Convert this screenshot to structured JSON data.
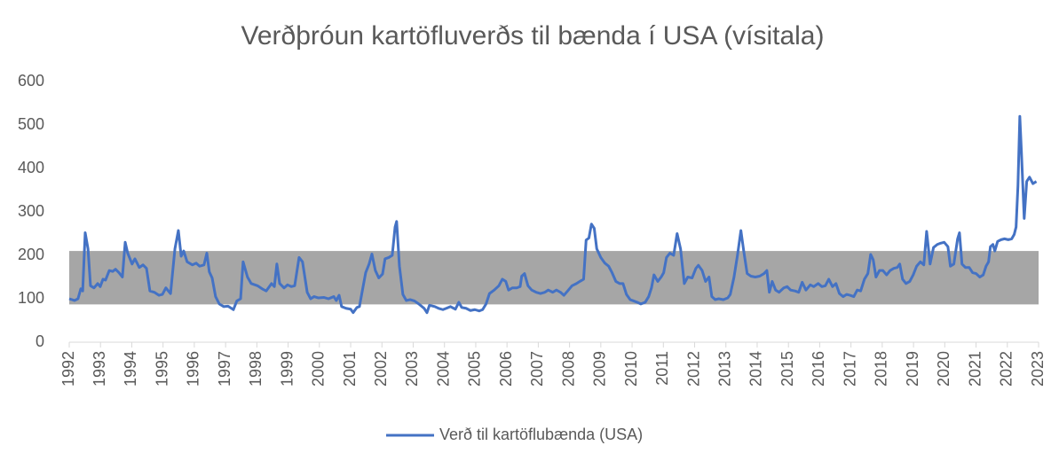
{
  "chart_data": {
    "type": "line",
    "title": "Verðþróun kartöfluverðs til bænda í USA (vísitala)",
    "x": [
      1992.0,
      1992.17,
      1992.28,
      1992.37,
      1992.43,
      1992.51,
      1992.6,
      1992.68,
      1992.79,
      1992.91,
      1992.99,
      1993.08,
      1993.16,
      1993.28,
      1993.39,
      1993.48,
      1993.59,
      1993.7,
      1993.79,
      1993.87,
      1994.01,
      1994.1,
      1994.24,
      1994.36,
      1994.47,
      1994.58,
      1994.72,
      1994.87,
      1994.98,
      1995.09,
      1995.24,
      1995.38,
      1995.49,
      1995.58,
      1995.66,
      1995.77,
      1995.94,
      1996.06,
      1996.17,
      1996.31,
      1996.4,
      1996.48,
      1996.57,
      1996.68,
      1996.8,
      1996.94,
      1997.08,
      1997.25,
      1997.36,
      1997.48,
      1997.56,
      1997.7,
      1997.82,
      1998.02,
      1998.19,
      1998.3,
      1998.47,
      1998.56,
      1998.64,
      1998.73,
      1998.87,
      1998.98,
      1999.1,
      1999.21,
      1999.35,
      1999.46,
      1999.61,
      1999.72,
      1999.83,
      1999.97,
      2000.15,
      2000.29,
      2000.46,
      2000.54,
      2000.63,
      2000.71,
      2000.85,
      2001.0,
      2001.08,
      2001.2,
      2001.28,
      2001.39,
      2001.48,
      2001.59,
      2001.68,
      2001.79,
      2001.9,
      2002.02,
      2002.1,
      2002.22,
      2002.33,
      2002.42,
      2002.47,
      2002.56,
      2002.67,
      2002.78,
      2002.9,
      2003.04,
      2003.18,
      2003.35,
      2003.44,
      2003.52,
      2003.69,
      2003.81,
      2003.95,
      2004.06,
      2004.19,
      2004.35,
      2004.46,
      2004.55,
      2004.69,
      2004.83,
      2004.97,
      2005.11,
      2005.22,
      2005.33,
      2005.44,
      2005.59,
      2005.74,
      2005.85,
      2005.96,
      2006.05,
      2006.17,
      2006.31,
      2006.42,
      2006.47,
      2006.56,
      2006.67,
      2006.79,
      2006.93,
      2007.07,
      2007.21,
      2007.32,
      2007.46,
      2007.58,
      2007.71,
      2007.82,
      2007.94,
      2008.08,
      2008.22,
      2008.33,
      2008.45,
      2008.53,
      2008.62,
      2008.7,
      2008.79,
      2008.87,
      2009.0,
      2009.13,
      2009.25,
      2009.36,
      2009.48,
      2009.6,
      2009.71,
      2009.82,
      2009.94,
      2010.05,
      2010.16,
      2010.28,
      2010.42,
      2010.53,
      2010.62,
      2010.7,
      2010.82,
      2010.93,
      2011.01,
      2011.1,
      2011.21,
      2011.33,
      2011.44,
      2011.55,
      2011.67,
      2011.78,
      2011.92,
      2012.04,
      2012.12,
      2012.24,
      2012.35,
      2012.46,
      2012.55,
      2012.66,
      2012.77,
      2012.92,
      2013.06,
      2013.14,
      2013.26,
      2013.37,
      2013.48,
      2013.57,
      2013.68,
      2013.8,
      2013.94,
      2014.08,
      2014.22,
      2014.31,
      2014.39,
      2014.48,
      2014.59,
      2014.7,
      2014.85,
      2014.96,
      2015.07,
      2015.21,
      2015.33,
      2015.44,
      2015.56,
      2015.7,
      2015.81,
      2015.95,
      2016.07,
      2016.18,
      2016.29,
      2016.41,
      2016.52,
      2016.63,
      2016.75,
      2016.86,
      2016.97,
      2017.09,
      2017.2,
      2017.31,
      2017.43,
      2017.54,
      2017.63,
      2017.71,
      2017.8,
      2017.91,
      2018.02,
      2018.14,
      2018.25,
      2018.37,
      2018.48,
      2018.56,
      2018.65,
      2018.76,
      2018.88,
      2018.99,
      2019.1,
      2019.22,
      2019.33,
      2019.42,
      2019.53,
      2019.64,
      2019.76,
      2019.87,
      2019.98,
      2020.1,
      2020.18,
      2020.29,
      2020.41,
      2020.47,
      2020.55,
      2020.66,
      2020.78,
      2020.89,
      2021.0,
      2021.12,
      2021.23,
      2021.32,
      2021.4,
      2021.46,
      2021.54,
      2021.6,
      2021.69,
      2021.8,
      2021.91,
      2022.03,
      2022.14,
      2022.22,
      2022.28,
      2022.34,
      2022.4,
      2022.45,
      2022.54,
      2022.62,
      2022.71,
      2022.82,
      2022.93
    ],
    "series": [
      {
        "name": "Verð til kartöflubænda (USA)",
        "color": "#4472c4",
        "values": [
          100,
          96,
          100,
          123,
          118,
          252,
          215,
          130,
          125,
          135,
          128,
          145,
          143,
          165,
          163,
          168,
          160,
          150,
          230,
          205,
          180,
          192,
          172,
          178,
          170,
          118,
          115,
          108,
          110,
          125,
          112,
          215,
          257,
          198,
          210,
          185,
          178,
          182,
          175,
          178,
          205,
          162,
          148,
          105,
          88,
          82,
          83,
          75,
          95,
          100,
          185,
          150,
          135,
          130,
          122,
          118,
          135,
          128,
          180,
          135,
          125,
          132,
          128,
          130,
          195,
          185,
          115,
          100,
          105,
          102,
          103,
          100,
          105,
          96,
          108,
          82,
          78,
          76,
          68,
          80,
          82,
          125,
          160,
          180,
          203,
          165,
          148,
          157,
          192,
          195,
          200,
          265,
          278,
          175,
          110,
          96,
          98,
          95,
          88,
          78,
          68,
          85,
          82,
          78,
          75,
          78,
          82,
          76,
          92,
          80,
          78,
          73,
          75,
          72,
          75,
          88,
          112,
          120,
          130,
          145,
          140,
          120,
          125,
          125,
          128,
          152,
          158,
          130,
          120,
          115,
          112,
          115,
          120,
          115,
          120,
          115,
          108,
          118,
          130,
          135,
          140,
          145,
          235,
          240,
          272,
          262,
          215,
          195,
          182,
          175,
          160,
          140,
          135,
          135,
          110,
          98,
          95,
          92,
          88,
          92,
          105,
          125,
          155,
          140,
          150,
          160,
          195,
          205,
          200,
          250,
          215,
          135,
          150,
          148,
          170,
          177,
          165,
          140,
          150,
          105,
          98,
          100,
          98,
          102,
          110,
          150,
          200,
          257,
          210,
          158,
          152,
          150,
          152,
          158,
          165,
          115,
          140,
          120,
          115,
          125,
          128,
          120,
          118,
          115,
          138,
          120,
          132,
          128,
          135,
          128,
          130,
          145,
          128,
          135,
          112,
          105,
          110,
          108,
          105,
          120,
          118,
          145,
          158,
          202,
          190,
          150,
          165,
          165,
          155,
          165,
          170,
          172,
          180,
          145,
          135,
          140,
          155,
          175,
          185,
          178,
          255,
          180,
          218,
          225,
          228,
          230,
          220,
          175,
          180,
          238,
          252,
          180,
          172,
          172,
          160,
          158,
          150,
          155,
          175,
          185,
          220,
          225,
          210,
          232,
          236,
          238,
          236,
          238,
          248,
          265,
          360,
          520,
          440,
          285,
          370,
          380,
          365,
          370
        ]
      }
    ],
    "xlim": [
      1992,
      2023
    ],
    "xticks": [
      1992,
      1993,
      1994,
      1995,
      1996,
      1997,
      1998,
      1999,
      2000,
      2001,
      2002,
      2003,
      2004,
      2005,
      2006,
      2007,
      2008,
      2009,
      2010,
      2011,
      2012,
      2013,
      2014,
      2015,
      2016,
      2017,
      2018,
      2019,
      2020,
      2021,
      2022,
      2023
    ],
    "ylim": [
      0,
      600
    ],
    "yticks": [
      0,
      100,
      200,
      300,
      400,
      500,
      600
    ],
    "grid": false,
    "shaded_band": {
      "ylim": [
        87,
        210
      ],
      "color": "#a6a6a6"
    },
    "legend": "bottom"
  }
}
